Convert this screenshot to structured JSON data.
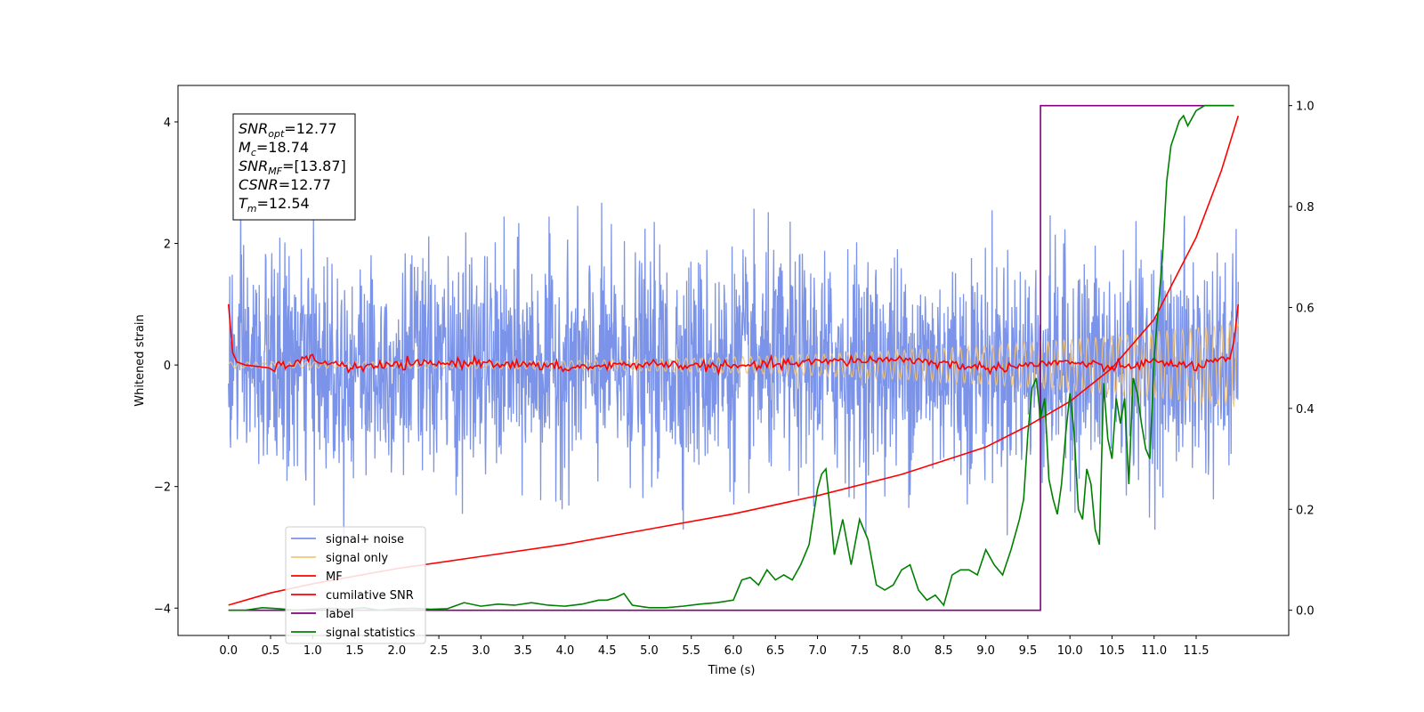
{
  "chart_data": {
    "type": "line",
    "xlabel": "Time (s)",
    "ylabel": "Whitened strain",
    "xlim": [
      -0.6,
      12.6
    ],
    "ylim": [
      -4.45,
      4.6
    ],
    "y2lim": [
      -0.05,
      1.04
    ],
    "x_ticks": [
      "0.0",
      "0.5",
      "1.0",
      "1.5",
      "2.0",
      "2.5",
      "3.0",
      "3.5",
      "4.0",
      "4.5",
      "5.0",
      "5.5",
      "6.0",
      "6.5",
      "7.0",
      "7.5",
      "8.0",
      "8.5",
      "9.0",
      "9.5",
      "10.0",
      "10.5",
      "11.0",
      "11.5"
    ],
    "y_ticks": [
      "−4",
      "−2",
      "0",
      "2",
      "4"
    ],
    "y2_ticks": [
      "0.0",
      "0.2",
      "0.4",
      "0.6",
      "0.8",
      "1.0"
    ],
    "legend_position": "lower-left",
    "legend": [
      "signal+ noise",
      "signal only",
      "MF",
      "cumilative SNR",
      "label",
      "signal statistics"
    ],
    "annotation": [
      {
        "sym": "SNR",
        "sub": "opt",
        "val": "=12.77"
      },
      {
        "sym": "M",
        "sub": "c",
        "val": "=18.74"
      },
      {
        "sym": "SNR",
        "sub": "MF",
        "val": "=[13.87]"
      },
      {
        "sym": "CSNR",
        "sub": "",
        "val": "=12.77"
      },
      {
        "sym": "T",
        "sub": "m",
        "val": "=12.54"
      }
    ],
    "series": [
      {
        "name": "signal+ noise",
        "axis": "left",
        "color": "#7b93e8",
        "kind": "noise",
        "duration": 12.0,
        "amplitude_range": [
          -2.8,
          3.4
        ]
      },
      {
        "name": "signal only",
        "axis": "left",
        "color": "#f5c77a",
        "kind": "chirp",
        "duration": 12.0,
        "amplitude_start": 0.05,
        "amplitude_end": 0.7
      },
      {
        "name": "MF",
        "axis": "left",
        "color": "#ff0000",
        "x": [
          0.0,
          0.05,
          0.1,
          0.2,
          0.5,
          1.0,
          1.5,
          2.0,
          3.0,
          4.0,
          5.0,
          6.0,
          7.0,
          8.0,
          9.0,
          10.0,
          10.5,
          11.0,
          11.5,
          11.9,
          11.95,
          12.0
        ],
        "y": [
          1.0,
          0.2,
          0.05,
          0.0,
          -0.05,
          0.1,
          -0.05,
          0.0,
          0.05,
          -0.05,
          0.02,
          -0.03,
          0.05,
          0.1,
          -0.05,
          0.05,
          -0.05,
          0.05,
          -0.02,
          0.1,
          0.4,
          1.0
        ]
      },
      {
        "name": "cumilative SNR",
        "axis": "left",
        "color": "#ff0000",
        "x": [
          0.0,
          0.5,
          1.0,
          2.0,
          3.0,
          4.0,
          5.0,
          6.0,
          7.0,
          8.0,
          9.0,
          9.5,
          10.0,
          10.5,
          11.0,
          11.5,
          11.8,
          12.0
        ],
        "y": [
          -3.95,
          -3.75,
          -3.6,
          -3.35,
          -3.15,
          -2.95,
          -2.7,
          -2.45,
          -2.15,
          -1.8,
          -1.35,
          -1.0,
          -0.6,
          -0.05,
          0.75,
          2.1,
          3.2,
          4.1
        ]
      },
      {
        "name": "label",
        "axis": "right",
        "color": "#800080",
        "x": [
          0.0,
          9.65,
          9.65,
          11.95
        ],
        "y": [
          0.0,
          0.0,
          1.0,
          1.0
        ]
      },
      {
        "name": "signal statistics",
        "axis": "right",
        "color": "#008000",
        "x": [
          0.0,
          0.2,
          0.4,
          0.6,
          0.8,
          1.0,
          1.2,
          1.4,
          1.6,
          1.8,
          2.0,
          2.2,
          2.4,
          2.6,
          2.8,
          3.0,
          3.2,
          3.4,
          3.6,
          3.8,
          4.0,
          4.2,
          4.4,
          4.5,
          4.6,
          4.7,
          4.8,
          5.0,
          5.2,
          5.4,
          5.6,
          5.8,
          6.0,
          6.1,
          6.2,
          6.3,
          6.4,
          6.5,
          6.6,
          6.7,
          6.8,
          6.9,
          7.0,
          7.05,
          7.1,
          7.15,
          7.2,
          7.3,
          7.4,
          7.5,
          7.6,
          7.7,
          7.8,
          7.9,
          8.0,
          8.1,
          8.2,
          8.3,
          8.4,
          8.5,
          8.6,
          8.7,
          8.8,
          8.9,
          9.0,
          9.1,
          9.2,
          9.3,
          9.35,
          9.4,
          9.45,
          9.5,
          9.55,
          9.6,
          9.65,
          9.7,
          9.75,
          9.8,
          9.85,
          9.9,
          9.95,
          10.0,
          10.05,
          10.1,
          10.15,
          10.2,
          10.25,
          10.3,
          10.35,
          10.4,
          10.45,
          10.5,
          10.55,
          10.6,
          10.65,
          10.7,
          10.75,
          10.8,
          10.85,
          10.9,
          10.95,
          11.0,
          11.05,
          11.1,
          11.15,
          11.2,
          11.3,
          11.35,
          11.4,
          11.5,
          11.6,
          11.7,
          11.8,
          11.95
        ],
        "y": [
          0.0,
          0.0,
          0.005,
          0.003,
          0.0,
          0.002,
          0.004,
          0.002,
          0.005,
          0.0,
          0.003,
          0.004,
          0.002,
          0.003,
          0.015,
          0.008,
          0.012,
          0.01,
          0.015,
          0.01,
          0.008,
          0.012,
          0.02,
          0.02,
          0.025,
          0.033,
          0.01,
          0.005,
          0.005,
          0.008,
          0.012,
          0.015,
          0.02,
          0.06,
          0.065,
          0.05,
          0.08,
          0.06,
          0.07,
          0.06,
          0.09,
          0.13,
          0.24,
          0.27,
          0.28,
          0.2,
          0.11,
          0.18,
          0.09,
          0.18,
          0.14,
          0.05,
          0.04,
          0.05,
          0.08,
          0.09,
          0.04,
          0.02,
          0.03,
          0.01,
          0.07,
          0.08,
          0.08,
          0.07,
          0.12,
          0.09,
          0.07,
          0.12,
          0.15,
          0.18,
          0.22,
          0.35,
          0.44,
          0.46,
          0.38,
          0.42,
          0.26,
          0.22,
          0.19,
          0.25,
          0.35,
          0.43,
          0.35,
          0.2,
          0.18,
          0.28,
          0.25,
          0.16,
          0.13,
          0.45,
          0.34,
          0.3,
          0.42,
          0.37,
          0.42,
          0.25,
          0.46,
          0.43,
          0.37,
          0.32,
          0.3,
          0.5,
          0.6,
          0.7,
          0.85,
          0.92,
          0.97,
          0.98,
          0.96,
          0.99,
          1.0,
          1.0,
          1.0,
          1.0
        ]
      }
    ]
  }
}
